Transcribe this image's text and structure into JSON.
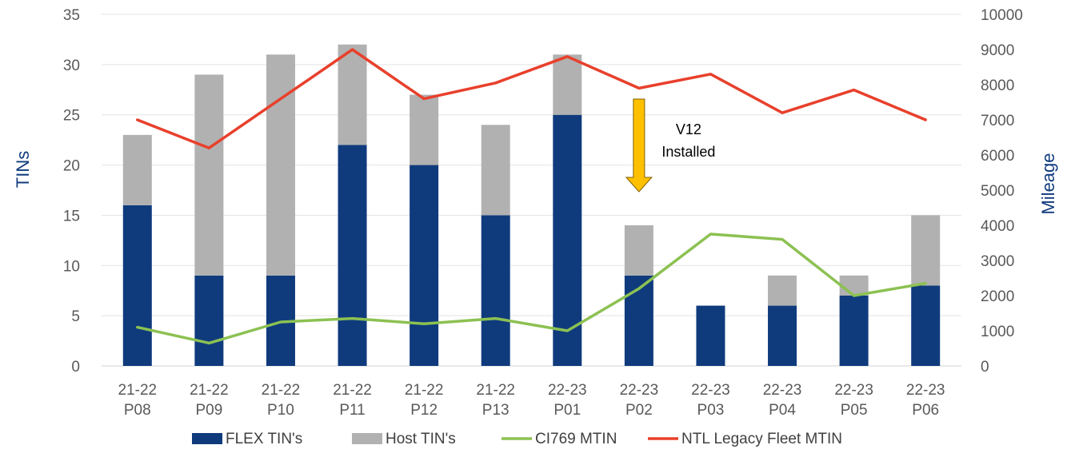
{
  "chart_data": {
    "type": "bar",
    "stacked": true,
    "categories": [
      [
        "21-22",
        "P08"
      ],
      [
        "21-22",
        "P09"
      ],
      [
        "21-22",
        "P10"
      ],
      [
        "21-22",
        "P11"
      ],
      [
        "21-22",
        "P12"
      ],
      [
        "21-22",
        "P13"
      ],
      [
        "22-23",
        "P01"
      ],
      [
        "22-23",
        "P02"
      ],
      [
        "22-23",
        "P03"
      ],
      [
        "22-23",
        "P04"
      ],
      [
        "22-23",
        "P05"
      ],
      [
        "22-23",
        "P06"
      ]
    ],
    "left_axis": {
      "label": "TINs",
      "range": [
        0,
        35
      ],
      "ticks": [
        "0",
        "5",
        "10",
        "15",
        "20",
        "25",
        "30",
        "35"
      ]
    },
    "right_axis": {
      "label": "Mileage",
      "range": [
        0,
        10000
      ],
      "ticks": [
        "0",
        "1000",
        "2000",
        "3000",
        "4000",
        "5000",
        "6000",
        "7000",
        "8000",
        "9000",
        "10000"
      ]
    },
    "grid": true,
    "legend_position": "bottom",
    "series": [
      {
        "name": "FLEX TIN's",
        "kind": "bar",
        "axis": "left",
        "color": "#0f3b7d",
        "values": [
          16,
          9,
          9,
          22,
          20,
          15,
          25,
          9,
          6,
          6,
          7,
          8
        ]
      },
      {
        "name": "Host TIN's",
        "kind": "bar",
        "axis": "left",
        "color": "#b1b1b1",
        "values": [
          7,
          20,
          22,
          10,
          7,
          9,
          6,
          5,
          0,
          3,
          2,
          7
        ]
      },
      {
        "name": "CI769 MTIN",
        "kind": "line",
        "axis": "right",
        "color": "#8cc152",
        "values": [
          1100,
          650,
          1250,
          1350,
          1200,
          1350,
          1000,
          2200,
          3750,
          3600,
          2000,
          2350
        ]
      },
      {
        "name": "NTL Legacy Fleet MTIN",
        "kind": "line",
        "axis": "right",
        "color": "#e8402c",
        "values": [
          7000,
          6200,
          7600,
          9000,
          7600,
          8050,
          8800,
          7900,
          8300,
          7200,
          7850,
          7000
        ]
      }
    ],
    "annotations": [
      {
        "text": [
          "V12",
          "Installed"
        ],
        "category_index": 7,
        "arrow": "down",
        "arrow_color": "#ffc000"
      }
    ]
  }
}
